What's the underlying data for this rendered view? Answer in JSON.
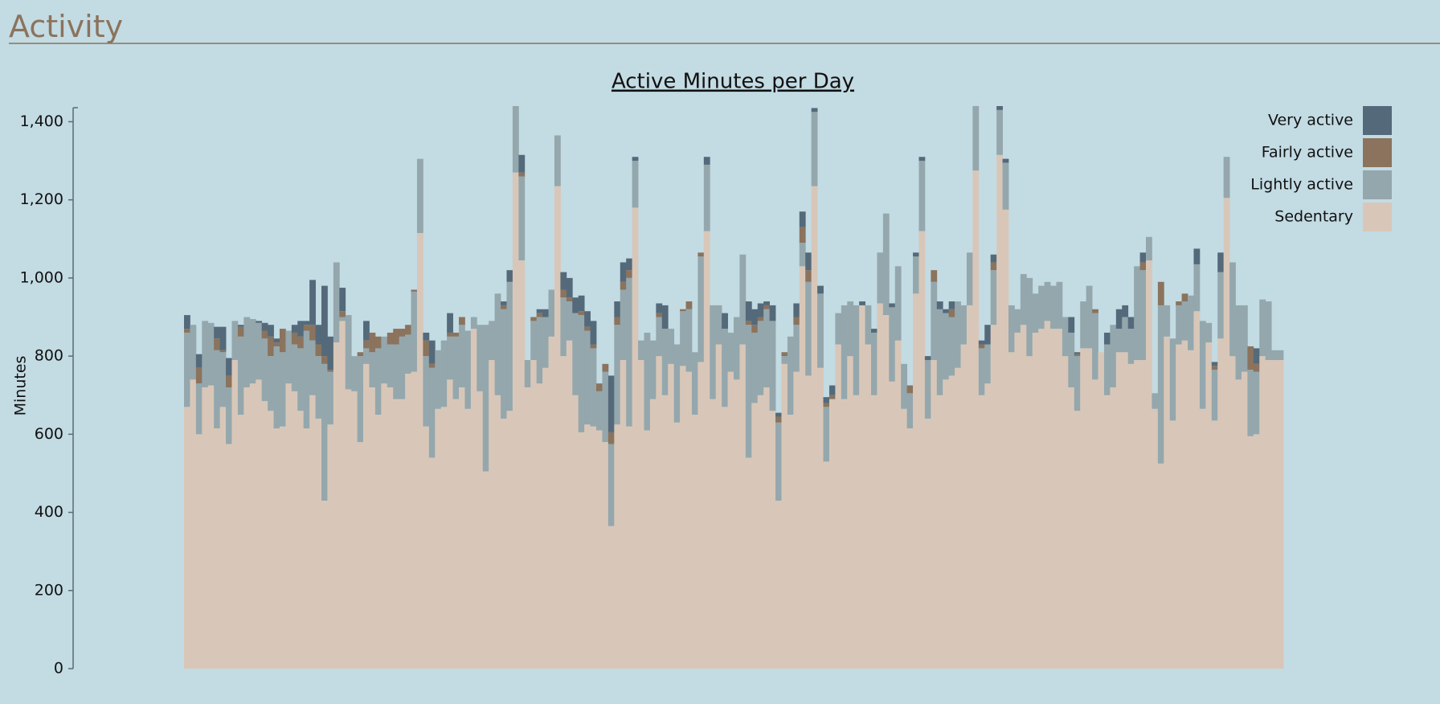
{
  "header": {
    "title": "Activity"
  },
  "chart_data": {
    "type": "stacked-bar",
    "title": "Active Minutes per Day",
    "y_label": "Minutes",
    "categories": [
      null,
      null,
      null,
      null,
      null,
      null,
      null,
      null,
      null,
      null,
      null,
      null,
      null,
      null,
      null,
      null,
      null,
      null,
      null,
      null,
      null,
      null,
      null,
      null,
      null,
      null,
      null,
      null,
      null,
      null,
      null,
      null,
      null,
      null,
      null,
      null,
      null,
      null,
      null,
      null,
      null,
      null,
      null,
      null,
      null,
      null,
      null,
      null,
      null,
      null,
      null,
      null,
      null,
      null,
      null,
      null,
      null,
      null,
      null,
      null,
      null,
      null,
      null,
      null,
      null,
      null,
      null,
      null,
      null,
      null,
      null,
      null,
      null,
      null,
      null,
      null,
      null,
      null,
      null,
      null,
      null,
      null,
      null,
      null,
      null,
      null,
      null,
      null,
      null,
      null,
      null,
      null,
      null,
      null,
      null,
      null,
      null,
      null,
      null,
      null,
      null,
      null,
      null,
      null,
      null,
      null,
      null,
      null,
      null,
      null,
      null,
      null,
      null,
      null,
      null,
      null,
      null,
      null,
      null,
      null,
      null,
      null,
      null,
      null,
      null,
      null,
      null,
      null,
      null,
      null,
      null,
      null,
      null,
      null,
      null,
      null,
      null,
      null,
      null,
      null,
      null,
      null,
      null,
      null,
      null,
      null,
      null,
      null,
      null,
      null,
      null,
      null,
      null,
      null,
      null,
      null,
      null,
      null,
      null,
      null,
      null,
      null,
      null,
      null,
      null,
      null,
      null,
      null,
      null,
      null,
      null,
      null,
      null,
      null,
      null,
      null,
      null,
      null,
      null,
      null,
      null,
      null,
      null,
      null
    ],
    "series": [
      {
        "name": "Sedentary",
        "color": "#d8c7b8",
        "values": [
          670,
          740,
          600,
          720,
          725,
          615,
          670,
          575,
          790,
          650,
          720,
          730,
          740,
          685,
          660,
          615,
          620,
          730,
          710,
          660,
          615,
          700,
          640,
          430,
          625,
          835,
          890,
          715,
          710,
          580,
          780,
          720,
          650,
          730,
          720,
          690,
          690,
          755,
          760,
          1115,
          620,
          540,
          665,
          670,
          740,
          690,
          720,
          665,
          870,
          710,
          505,
          790,
          700,
          640,
          660,
          1270,
          1045,
          720,
          790,
          730,
          770,
          850,
          1235,
          800,
          840,
          700,
          605,
          625,
          620,
          610,
          580,
          365,
          625,
          790,
          620,
          1180,
          790,
          610,
          690,
          800,
          700,
          780,
          630,
          775,
          760,
          650,
          785,
          1120,
          690,
          830,
          670,
          760,
          740,
          830,
          540,
          680,
          700,
          720,
          660,
          430,
          780,
          650,
          760,
          1030,
          750,
          1235,
          770,
          530,
          690,
          830,
          690,
          800,
          700,
          930,
          830,
          700,
          935,
          905,
          735,
          840,
          665,
          615,
          960,
          1120,
          640,
          790,
          700,
          740,
          750,
          770,
          830,
          930,
          1275,
          700,
          730,
          880,
          1315,
          1175,
          810,
          860,
          880,
          800,
          860,
          870,
          890,
          870,
          870,
          800,
          720,
          660,
          820,
          820,
          740,
          810,
          700,
          720,
          810,
          810,
          780,
          790,
          790,
          1045,
          665,
          525,
          850,
          635,
          830,
          840,
          815,
          915,
          665,
          835,
          635,
          845,
          1205,
          800,
          740,
          760,
          595,
          600,
          800,
          790,
          790,
          790
        ]
      },
      {
        "name": "Lightly active",
        "color": "#94a7ad",
        "values": [
          190,
          140,
          130,
          170,
          160,
          200,
          140,
          145,
          100,
          200,
          180,
          165,
          145,
          160,
          140,
          210,
          190,
          135,
          120,
          160,
          250,
          140,
          160,
          350,
          135,
          205,
          10,
          190,
          90,
          220,
          40,
          90,
          170,
          120,
          110,
          140,
          160,
          100,
          205,
          190,
          180,
          230,
          150,
          170,
          110,
          160,
          160,
          200,
          30,
          170,
          375,
          100,
          260,
          280,
          330,
          170,
          215,
          70,
          100,
          170,
          130,
          120,
          130,
          150,
          100,
          210,
          300,
          240,
          200,
          100,
          180,
          210,
          255,
          180,
          380,
          120,
          50,
          250,
          150,
          100,
          170,
          90,
          200,
          140,
          160,
          160,
          270,
          170,
          240,
          100,
          200,
          100,
          160,
          230,
          340,
          180,
          190,
          200,
          230,
          200,
          20,
          200,
          120,
          60,
          240,
          190,
          190,
          140,
          0,
          80,
          240,
          140,
          230,
          0,
          100,
          160,
          130,
          260,
          190,
          190,
          115,
          90,
          95,
          180,
          150,
          200,
          220,
          170,
          150,
          170,
          100,
          135,
          165,
          120,
          100,
          140,
          115,
          120,
          120,
          60,
          130,
          200,
          100,
          110,
          100,
          110,
          120,
          100,
          140,
          140,
          120,
          160,
          170,
          0,
          130,
          160,
          60,
          90,
          90,
          240,
          230,
          60,
          40,
          405,
          80,
          210,
          100,
          100,
          140,
          120,
          225,
          50,
          130,
          170,
          105,
          240,
          190,
          170,
          170,
          160,
          145,
          150,
          25,
          25
        ]
      },
      {
        "name": "Fairly active",
        "color": "#8b735d",
        "values": [
          10,
          0,
          40,
          0,
          0,
          30,
          5,
          30,
          0,
          25,
          0,
          0,
          0,
          20,
          50,
          10,
          60,
          0,
          30,
          30,
          15,
          40,
          30,
          20,
          5,
          0,
          15,
          0,
          0,
          10,
          20,
          50,
          30,
          0,
          30,
          40,
          20,
          25,
          5,
          0,
          40,
          10,
          0,
          0,
          10,
          10,
          20,
          0,
          0,
          0,
          0,
          0,
          0,
          10,
          0,
          0,
          10,
          0,
          10,
          10,
          0,
          0,
          0,
          20,
          10,
          0,
          10,
          10,
          10,
          20,
          20,
          30,
          20,
          20,
          20,
          0,
          0,
          0,
          0,
          10,
          0,
          0,
          0,
          5,
          20,
          0,
          10,
          0,
          0,
          0,
          0,
          0,
          0,
          0,
          10,
          20,
          10,
          10,
          0,
          15,
          10,
          0,
          20,
          40,
          30,
          0,
          0,
          10,
          10,
          0,
          0,
          0,
          0,
          0,
          0,
          0,
          0,
          0,
          0,
          0,
          0,
          20,
          0,
          0,
          0,
          30,
          0,
          0,
          20,
          0,
          0,
          0,
          0,
          10,
          0,
          20,
          0,
          0,
          0,
          0,
          0,
          0,
          0,
          0,
          0,
          0,
          0,
          0,
          0,
          5,
          0,
          0,
          10,
          0,
          0,
          0,
          0,
          0,
          0,
          0,
          20,
          0,
          0,
          60,
          0,
          0,
          10,
          20,
          0,
          0,
          0,
          0,
          10,
          0,
          0,
          0,
          0,
          0,
          60,
          20,
          0,
          0,
          0,
          0
        ]
      },
      {
        "name": "Very active",
        "color": "#546a7b",
        "values": [
          35,
          0,
          35,
          0,
          0,
          30,
          60,
          45,
          0,
          5,
          0,
          0,
          5,
          20,
          30,
          10,
          0,
          0,
          20,
          40,
          10,
          115,
          50,
          180,
          85,
          0,
          60,
          0,
          0,
          0,
          50,
          0,
          0,
          0,
          0,
          0,
          0,
          0,
          0,
          0,
          20,
          60,
          0,
          0,
          50,
          0,
          0,
          0,
          0,
          0,
          0,
          0,
          0,
          10,
          30,
          0,
          45,
          0,
          0,
          10,
          20,
          0,
          0,
          45,
          50,
          40,
          40,
          40,
          60,
          0,
          0,
          145,
          40,
          50,
          30,
          10,
          0,
          0,
          0,
          25,
          60,
          0,
          0,
          0,
          0,
          0,
          0,
          20,
          0,
          0,
          40,
          0,
          0,
          0,
          50,
          40,
          35,
          10,
          40,
          10,
          0,
          0,
          35,
          40,
          45,
          10,
          20,
          15,
          25,
          0,
          0,
          0,
          0,
          10,
          0,
          10,
          0,
          0,
          10,
          0,
          0,
          0,
          10,
          10,
          10,
          0,
          20,
          10,
          20,
          0,
          0,
          0,
          0,
          10,
          50,
          20,
          10,
          10,
          0,
          0,
          0,
          0,
          0,
          0,
          0,
          0,
          0,
          0,
          40,
          5,
          0,
          0,
          0,
          0,
          30,
          0,
          50,
          30,
          30,
          0,
          25,
          0,
          0,
          0,
          0,
          0,
          0,
          0,
          0,
          40,
          0,
          0,
          10,
          50,
          0,
          0,
          0,
          0,
          0,
          40,
          0,
          0,
          0,
          0
        ]
      }
    ],
    "ylim": [
      0,
      1440
    ],
    "yticks": [
      0,
      200,
      400,
      600,
      800,
      {
        "value": 1000,
        "label": "1,000"
      },
      {
        "value": 1200,
        "label": "1,200"
      },
      {
        "value": 1400,
        "label": "1,400"
      }
    ],
    "legend": "top-right",
    "grid": false
  }
}
